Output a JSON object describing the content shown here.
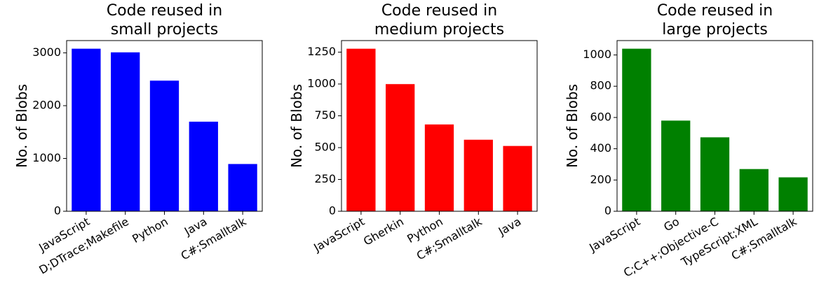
{
  "chart_data": [
    {
      "type": "bar",
      "title": [
        "Code reused in",
        "small projects"
      ],
      "y_label": "No. of Blobs",
      "color": "#0000ff",
      "categories": [
        "JavaScript",
        "D;DTrace;Makefile",
        "Python",
        "Java",
        "C#;Smalltalk"
      ],
      "values": [
        3079,
        3010,
        2474,
        1697,
        895
      ],
      "ylim": [
        0,
        3233
      ],
      "yticks": [
        0,
        1000,
        2000,
        3000
      ]
    },
    {
      "type": "bar",
      "title": [
        "Code reused in",
        "medium projects"
      ],
      "y_label": "No. of Blobs",
      "color": "#ff0000",
      "categories": [
        "JavaScript",
        "Gherkin",
        "Python",
        "C#;Smalltalk",
        "Java"
      ],
      "values": [
        1277,
        999,
        682,
        562,
        513
      ],
      "ylim": [
        0,
        1341
      ],
      "yticks": [
        0,
        250,
        500,
        750,
        1000,
        1250
      ]
    },
    {
      "type": "bar",
      "title": [
        "Code reused in",
        "large projects"
      ],
      "y_label": "No. of Blobs",
      "color": "#008000",
      "categories": [
        "JavaScript",
        "Go",
        "C;C++;Objective-C",
        "TypeScript;XML",
        "C#;Smalltalk"
      ],
      "values": [
        1040,
        580,
        473,
        270,
        217
      ],
      "ylim": [
        0,
        1092
      ],
      "yticks": [
        0,
        200,
        400,
        600,
        800,
        1000
      ]
    }
  ]
}
